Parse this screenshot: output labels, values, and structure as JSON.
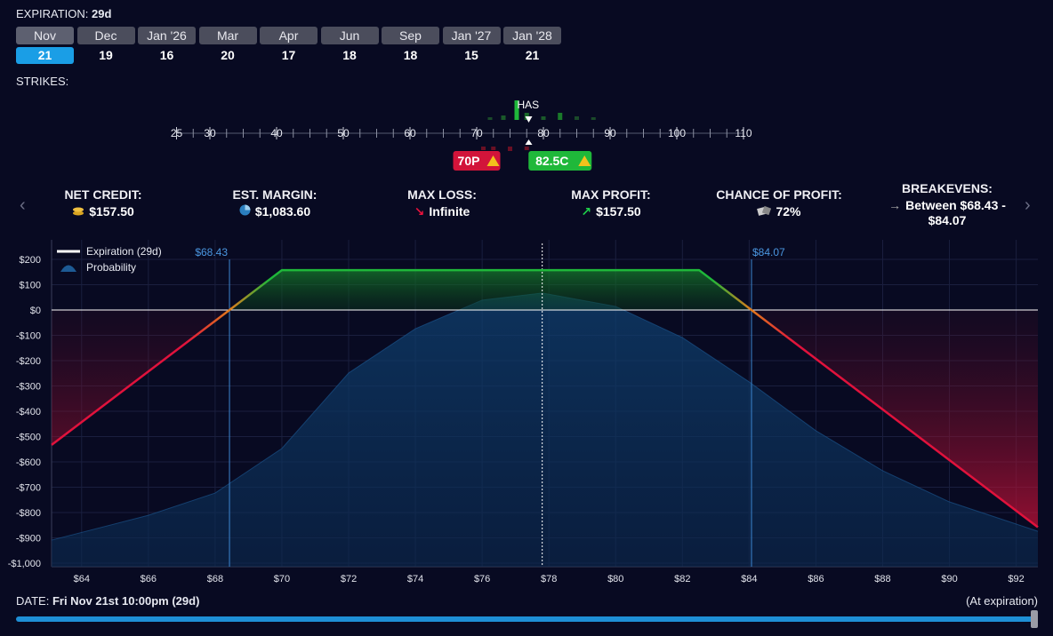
{
  "expiration": {
    "label": "EXPIRATION:",
    "value": "29d"
  },
  "months": [
    {
      "name": "Nov",
      "day": 21
    },
    {
      "name": "Dec",
      "day": 19
    },
    {
      "name": "Jan '26",
      "day": 16
    },
    {
      "name": "Mar",
      "day": 20
    },
    {
      "name": "Apr",
      "day": 17
    },
    {
      "name": "Jun",
      "day": 18
    },
    {
      "name": "Sep",
      "day": 18
    },
    {
      "name": "Jan '27",
      "day": 15
    },
    {
      "name": "Jan '28",
      "day": 21
    }
  ],
  "strikes": {
    "label": "STRIKES:",
    "ticks": [
      25,
      30,
      40,
      50,
      60,
      70,
      80,
      90,
      100,
      110
    ],
    "underlying": "HAS",
    "underlying_price": 77.8,
    "legs": [
      {
        "label": "70P",
        "strike": 70,
        "color": "#d2143a"
      },
      {
        "label": "82.5C",
        "strike": 82.5,
        "color": "#1fb83a"
      }
    ]
  },
  "stats": [
    {
      "label": "NET CREDIT:",
      "value": "$157.50"
    },
    {
      "label": "EST. MARGIN:",
      "value": "$1,083.60"
    },
    {
      "label": "MAX LOSS:",
      "value": "Infinite"
    },
    {
      "label": "MAX PROFIT:",
      "value": "$157.50"
    },
    {
      "label": "CHANCE OF PROFIT:",
      "value": "72%"
    },
    {
      "label": "BREAKEVENS:",
      "value": "Between $68.43 - $84.07"
    }
  ],
  "chart_data": {
    "type": "line",
    "xlim": [
      63.1,
      92.65
    ],
    "ylim": [
      -1014,
      277
    ],
    "xticks": [
      {
        "value": 64,
        "label": "$64"
      },
      {
        "value": 66,
        "label": "$66"
      },
      {
        "value": 68,
        "label": "$68"
      },
      {
        "value": 70,
        "label": "$70"
      },
      {
        "value": 72,
        "label": "$72"
      },
      {
        "value": 74,
        "label": "$74"
      },
      {
        "value": 76,
        "label": "$76"
      },
      {
        "value": 78,
        "label": "$78"
      },
      {
        "value": 80,
        "label": "$80"
      },
      {
        "value": 82,
        "label": "$82"
      },
      {
        "value": 84,
        "label": "$84"
      },
      {
        "value": 86,
        "label": "$86"
      },
      {
        "value": 88,
        "label": "$88"
      },
      {
        "value": 90,
        "label": "$90"
      },
      {
        "value": 92,
        "label": "$92"
      }
    ],
    "yticks": [
      {
        "value": 200,
        "label": "$200"
      },
      {
        "value": 100,
        "label": "$100"
      },
      {
        "value": 0,
        "label": "$0"
      },
      {
        "value": -100,
        "label": "-$100"
      },
      {
        "value": -200,
        "label": "-$200"
      },
      {
        "value": -300,
        "label": "-$300"
      },
      {
        "value": -400,
        "label": "-$400"
      },
      {
        "value": -500,
        "label": "-$500"
      },
      {
        "value": -600,
        "label": "-$600"
      },
      {
        "value": -700,
        "label": "-$700"
      },
      {
        "value": -800,
        "label": "-$800"
      },
      {
        "value": -900,
        "label": "-$900"
      },
      {
        "value": -1000,
        "label": "-$1,000"
      }
    ],
    "grid": true,
    "legend": "top-left",
    "price_line": 77.8,
    "breakevens": [
      {
        "value": 68.43,
        "label": "$68.43"
      },
      {
        "value": 84.07,
        "label": "$84.07"
      }
    ],
    "series": [
      {
        "name": "Expiration (29d)",
        "color": "#ffffff",
        "x": [
          63.1,
          68.43,
          70,
          82.5,
          84.07,
          92.65
        ],
        "values": [
          -533,
          0,
          157.5,
          157.5,
          0,
          -858
        ]
      },
      {
        "name": "Probability",
        "color": "#1d5a94",
        "x": [
          63.1,
          66,
          68,
          70,
          72,
          74,
          76,
          77.8,
          80,
          82,
          84,
          86,
          88,
          90,
          92.65
        ],
        "values": [
          -909,
          -811,
          -723,
          -547,
          -249,
          -74,
          39,
          67,
          14,
          -109,
          -284,
          -477,
          -635,
          -758,
          -874
        ]
      }
    ]
  },
  "footer": {
    "date_label": "DATE:",
    "date": "Fri Nov 21st 10:00pm (29d)",
    "note": "(At expiration)"
  }
}
